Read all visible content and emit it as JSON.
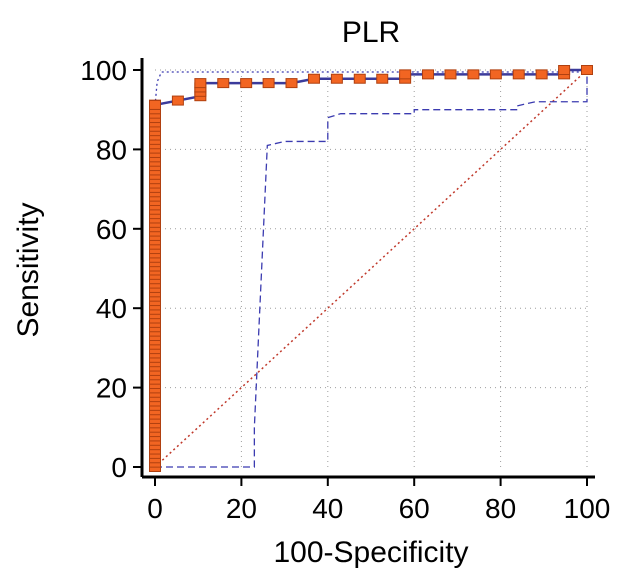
{
  "chart_data": {
    "type": "line",
    "title": "PLR",
    "xlabel": "100-Specificity",
    "ylabel": "Sensitivity",
    "xlim": [
      0,
      100
    ],
    "ylim": [
      0,
      100
    ],
    "x_ticks": [
      "0",
      "20",
      "40",
      "60",
      "80",
      "100"
    ],
    "y_ticks": [
      "0",
      "20",
      "40",
      "60",
      "80",
      "100"
    ],
    "grid": true,
    "colors": {
      "roc": "#3b3b9b",
      "marker": "#f26522",
      "marker_edge": "#b04010",
      "ci": "#3b3bb0",
      "reference": "#c0392b",
      "grid": "#9e9e9e"
    },
    "series": [
      {
        "role": "roc",
        "x": [
          0,
          0,
          0,
          0,
          0,
          0,
          0,
          0,
          0,
          0,
          0,
          0,
          0,
          0,
          0,
          0,
          0,
          0,
          0,
          0,
          0,
          0,
          0,
          0,
          0,
          0,
          0,
          0,
          0,
          0,
          0,
          0,
          0,
          0,
          0,
          0,
          0,
          0,
          0,
          0,
          0,
          0,
          0,
          0,
          0,
          0,
          0,
          0,
          0,
          0,
          0,
          0,
          0,
          0,
          0,
          0,
          0,
          0,
          0,
          0,
          0,
          0,
          0,
          0,
          0,
          0,
          0,
          0,
          0,
          0,
          0,
          0,
          0,
          0,
          0,
          0,
          0,
          0,
          0,
          0,
          0,
          0,
          0,
          0,
          0,
          0,
          0,
          0,
          0,
          0,
          0,
          0,
          0,
          5.3,
          10.5,
          10.5,
          10.5,
          10.5,
          15.8,
          21.1,
          26.3,
          31.6,
          36.8,
          42.1,
          47.4,
          52.6,
          57.9,
          57.9,
          63.2,
          68.4,
          73.7,
          78.9,
          84.2,
          89.5,
          94.7,
          94.7,
          100
        ],
        "y": [
          0,
          1.1,
          2.2,
          3.3,
          4.4,
          5.5,
          6.6,
          7.7,
          8.8,
          9.9,
          11.0,
          12.1,
          13.2,
          14.3,
          15.4,
          16.5,
          17.6,
          18.7,
          19.8,
          20.9,
          22.0,
          23.1,
          24.2,
          25.3,
          26.4,
          27.5,
          28.6,
          29.7,
          30.8,
          31.9,
          33.0,
          34.1,
          35.2,
          36.3,
          37.4,
          38.5,
          39.6,
          40.7,
          41.8,
          42.9,
          44.0,
          45.1,
          46.2,
          47.3,
          48.4,
          49.5,
          50.5,
          51.6,
          52.7,
          53.8,
          54.9,
          56.0,
          57.1,
          58.2,
          59.3,
          60.4,
          61.5,
          62.6,
          63.7,
          64.8,
          65.9,
          67.0,
          68.1,
          69.2,
          70.3,
          71.4,
          72.5,
          73.6,
          74.7,
          75.8,
          76.9,
          78.0,
          79.1,
          80.2,
          81.3,
          82.4,
          83.5,
          84.6,
          85.7,
          86.8,
          87.9,
          89.0,
          90.1,
          91.2,
          91.2,
          91.2,
          91.2,
          91.2,
          91.2,
          91.2,
          91.2,
          91.2,
          91.2,
          92.3,
          93.4,
          94.5,
          95.6,
          96.7,
          96.7,
          96.7,
          96.7,
          96.7,
          97.8,
          97.8,
          97.8,
          97.8,
          97.8,
          98.9,
          98.9,
          98.9,
          98.9,
          98.9,
          98.9,
          98.9,
          98.9,
          100,
          100
        ]
      },
      {
        "role": "ci-upper",
        "x": [
          0,
          0.5,
          1.5,
          100,
          100
        ],
        "y": [
          91,
          97,
          99.5,
          99.5,
          100
        ]
      },
      {
        "role": "ci-lower",
        "x": [
          0,
          0,
          23,
          23,
          26,
          30,
          40,
          40,
          43,
          50,
          60,
          60,
          70,
          84,
          84,
          88,
          100,
          100
        ],
        "y": [
          0,
          0,
          0,
          10,
          81,
          82,
          82,
          88,
          89,
          89,
          89,
          90,
          90,
          90,
          91,
          92,
          92,
          100
        ]
      },
      {
        "role": "reference",
        "x": [
          0,
          100
        ],
        "y": [
          0,
          100
        ]
      }
    ]
  }
}
